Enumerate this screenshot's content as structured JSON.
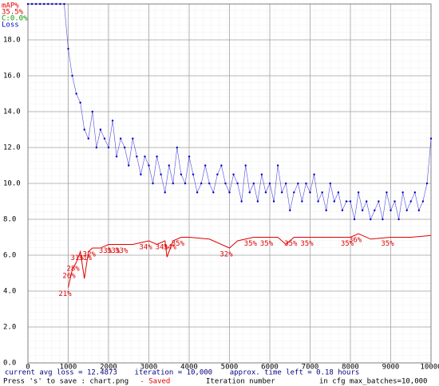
{
  "chart_data": {
    "type": "line",
    "legend_texts": [
      "mAP%",
      "35.5%",
      "C:0.0%",
      "Loss"
    ],
    "legend_colors": [
      "#e00000",
      "#e00000",
      "#00a000",
      "#0000cc"
    ],
    "status_line": "current avg loss = 12.4873    iteration = 10,000    approx. time left = 0.18 hours",
    "save_text": "Press 's' to save : chart.png",
    "saved_text": " - Saved",
    "xlabel": "Iteration number",
    "max_batches_text": "in cfg max_batches=10,000",
    "xlim": [
      0,
      10000
    ],
    "xticks": [
      0,
      1000,
      2000,
      3000,
      4000,
      5000,
      6000,
      7000,
      8000,
      9000,
      10000
    ],
    "ylim": [
      0,
      20
    ],
    "yticks": [
      {
        "value": 0,
        "label": "0.0"
      },
      {
        "value": 2,
        "label": "2.0"
      },
      {
        "value": 4,
        "label": "4.0"
      },
      {
        "value": 6,
        "label": "6.0"
      },
      {
        "value": 8,
        "label": "8.0"
      },
      {
        "value": 10,
        "label": "10.0"
      },
      {
        "value": 12,
        "label": "12.0"
      },
      {
        "value": 14,
        "label": "14.0"
      },
      {
        "value": 16,
        "label": "16.0"
      },
      {
        "value": 18,
        "label": "18.0"
      }
    ],
    "y2lim": [
      0,
      100
    ],
    "grid": true,
    "series": [
      {
        "name": "Loss",
        "color": "#0000cc",
        "x": [
          0,
          100,
          200,
          300,
          400,
          500,
          600,
          700,
          800,
          900,
          1000,
          1100,
          1200,
          1300,
          1400,
          1500,
          1600,
          1700,
          1800,
          1900,
          2000,
          2100,
          2200,
          2300,
          2400,
          2500,
          2600,
          2700,
          2800,
          2900,
          3000,
          3100,
          3200,
          3300,
          3400,
          3500,
          3600,
          3700,
          3800,
          3900,
          4000,
          4100,
          4200,
          4300,
          4400,
          4500,
          4600,
          4700,
          4800,
          4900,
          5000,
          5100,
          5200,
          5300,
          5400,
          5500,
          5600,
          5700,
          5800,
          5900,
          6000,
          6100,
          6200,
          6300,
          6400,
          6500,
          6600,
          6700,
          6800,
          6900,
          7000,
          7100,
          7200,
          7300,
          7400,
          7500,
          7600,
          7700,
          7800,
          7900,
          8000,
          8100,
          8200,
          8300,
          8400,
          8500,
          8600,
          8700,
          8800,
          8900,
          9000,
          9100,
          9200,
          9300,
          9400,
          9500,
          9600,
          9700,
          9800,
          9900,
          10000
        ],
        "values": [
          20,
          20,
          20,
          20,
          20,
          20,
          20,
          20,
          20,
          20,
          17.5,
          16,
          15,
          14.5,
          13,
          12.5,
          14,
          12,
          13,
          12.5,
          12,
          13.5,
          11.5,
          12.5,
          12,
          11,
          12.5,
          11.5,
          10.5,
          11.5,
          11,
          10,
          11.5,
          10.5,
          9.5,
          11,
          10,
          12,
          10.5,
          10,
          11.5,
          10.5,
          9.5,
          10,
          11,
          10,
          9.5,
          10.5,
          11,
          10,
          9.5,
          10.5,
          10,
          9,
          11,
          9.5,
          10,
          9,
          10.5,
          9.5,
          10,
          9,
          11,
          9.5,
          10,
          8.5,
          9.5,
          10,
          9,
          10,
          9.5,
          10.5,
          9,
          9.5,
          8.5,
          10,
          9,
          9.5,
          8.5,
          9,
          9,
          8,
          9.5,
          8.5,
          9,
          8,
          8.5,
          9,
          8,
          9.5,
          8.5,
          9,
          8,
          9.5,
          8.5,
          9,
          9.5,
          8.5,
          9,
          10,
          12.5
        ]
      },
      {
        "name": "mAP%",
        "color": "#e00000",
        "axis": "y2",
        "x": [
          1000,
          1100,
          1200,
          1300,
          1400,
          1500,
          1600,
          1800,
          2000,
          2200,
          2400,
          2600,
          3000,
          3200,
          3400,
          3450,
          3600,
          3800,
          4000,
          4500,
          5000,
          5200,
          5600,
          6000,
          6200,
          6400,
          6600,
          7000,
          7500,
          8000,
          8200,
          8500,
          9000,
          9500,
          10000
        ],
        "values": [
          21,
          26,
          28,
          31,
          23.5,
          31,
          32,
          32,
          33,
          33,
          33,
          33,
          34,
          33,
          34,
          29.5,
          34,
          35,
          35,
          34.5,
          32,
          34,
          35,
          35,
          35,
          33,
          35,
          35,
          35,
          35,
          36,
          34.5,
          35,
          35,
          35.5
        ],
        "value_labels": [
          "21%",
          "26%",
          "28%",
          "31%",
          null,
          "31%",
          "32%",
          null,
          "33%",
          "33%",
          "33%",
          null,
          "34%",
          null,
          "34%",
          null,
          "34%",
          "35%",
          null,
          null,
          "32%",
          null,
          "35%",
          "35%",
          null,
          null,
          "35%",
          "35%",
          null,
          "35%",
          "36%",
          null,
          "35%",
          null,
          null
        ]
      }
    ]
  }
}
